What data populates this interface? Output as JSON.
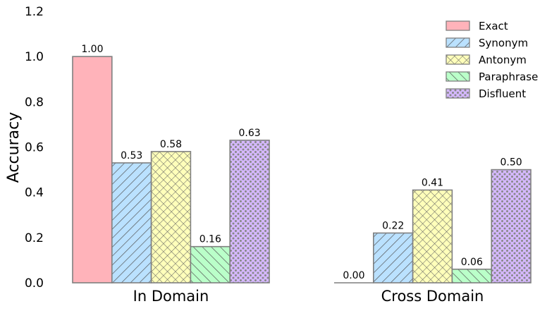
{
  "chart_data": {
    "type": "bar",
    "title": "",
    "xlabel": "",
    "ylabel": "Accuracy",
    "ylim": [
      0,
      1.2
    ],
    "yticks": [
      "0.0",
      "0.2",
      "0.4",
      "0.6",
      "0.8",
      "1.0",
      "1.2"
    ],
    "grid": false,
    "legend_position": "top-right",
    "categories": [
      "In Domain",
      "Cross Domain"
    ],
    "series": [
      {
        "name": "Exact",
        "values": [
          1.0,
          0.0
        ],
        "labels": [
          "1.00",
          "0.00"
        ],
        "color": "#ffb3ba",
        "pattern": "none"
      },
      {
        "name": "Synonym",
        "values": [
          0.53,
          0.22
        ],
        "labels": [
          "0.53",
          "0.22"
        ],
        "color": "#bae1ff",
        "pattern": "diagonal"
      },
      {
        "name": "Antonym",
        "values": [
          0.58,
          0.41
        ],
        "labels": [
          "0.58",
          "0.41"
        ],
        "color": "#ffffba",
        "pattern": "crosshatch"
      },
      {
        "name": "Paraphrase",
        "values": [
          0.16,
          0.06
        ],
        "labels": [
          "0.16",
          "0.06"
        ],
        "color": "#baffc9",
        "pattern": "backdiagonal"
      },
      {
        "name": "Disfluent",
        "values": [
          0.63,
          0.5
        ],
        "labels": [
          "0.63",
          "0.50"
        ],
        "color": "#d5b8ff",
        "pattern": "dots"
      }
    ]
  }
}
